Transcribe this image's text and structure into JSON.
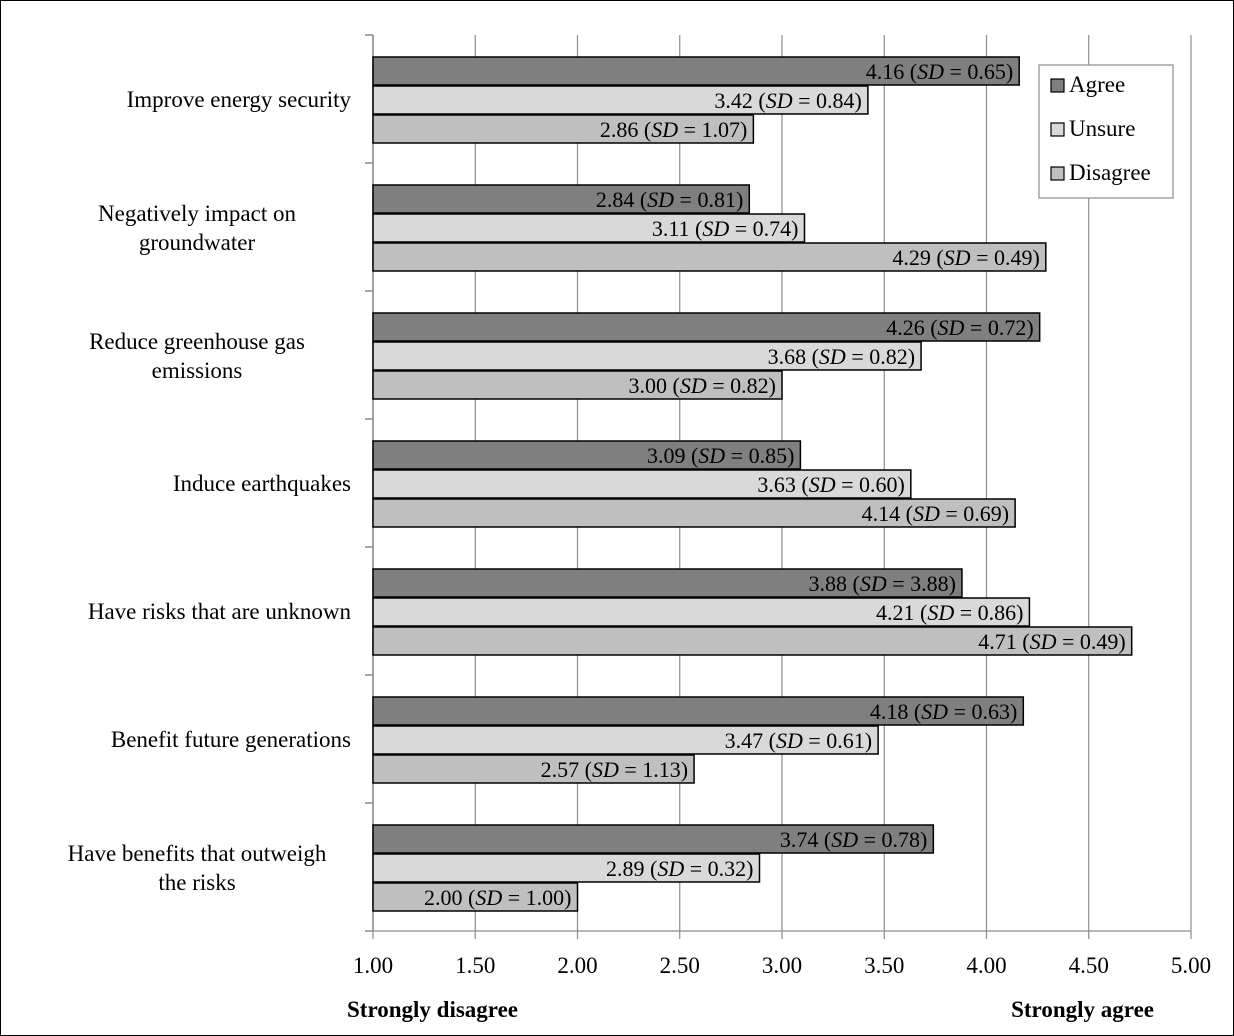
{
  "chart_data": {
    "type": "bar",
    "orientation": "horizontal",
    "categories": [
      "Improve energy security",
      "Negatively impact on groundwater",
      "Reduce greenhouse gas emissions",
      "Induce earthquakes",
      "Have risks that are unknown",
      "Benefit future generations",
      "Have benefits that outweigh the risks"
    ],
    "category_lines": [
      [
        "Improve energy security"
      ],
      [
        "Negatively impact on",
        "groundwater"
      ],
      [
        "Reduce greenhouse gas",
        "emissions"
      ],
      [
        "Induce earthquakes"
      ],
      [
        "Have risks that are unknown"
      ],
      [
        "Benefit future generations"
      ],
      [
        "Have benefits that outweigh",
        "the risks"
      ]
    ],
    "series": [
      {
        "name": "Agree",
        "color": "#7f7f7f",
        "values": [
          4.16,
          2.84,
          4.26,
          3.09,
          3.88,
          4.18,
          3.74
        ],
        "sd": [
          "0.65",
          "0.81",
          "0.72",
          "0.85",
          "3.88",
          "0.63",
          "0.78"
        ]
      },
      {
        "name": "Unsure",
        "color": "#d9d9d9",
        "values": [
          3.42,
          3.11,
          3.68,
          3.63,
          4.21,
          3.47,
          2.89
        ],
        "sd": [
          "0.84",
          "0.74",
          "0.82",
          "0.60",
          "0.86",
          "0.61",
          "0.32"
        ]
      },
      {
        "name": "Disagree",
        "color": "#bfbfbf",
        "values": [
          2.86,
          4.29,
          3.0,
          4.14,
          4.71,
          2.57,
          2.0
        ],
        "sd": [
          "1.07",
          "0.49",
          "0.82",
          "0.69",
          "0.49",
          "1.13",
          "1.00"
        ]
      }
    ],
    "xlim": [
      1.0,
      5.0
    ],
    "x_ticks": [
      "1.00",
      "1.50",
      "2.00",
      "2.50",
      "3.00",
      "3.50",
      "4.00",
      "4.50",
      "5.00"
    ],
    "x_tick_values": [
      1.0,
      1.5,
      2.0,
      2.5,
      3.0,
      3.5,
      4.0,
      4.5,
      5.0
    ],
    "x_end_labels": {
      "left": "Strongly disagree",
      "right": "Strongly agree"
    },
    "sd_symbol": "SD",
    "grid": true,
    "legend_position": "top-right"
  }
}
